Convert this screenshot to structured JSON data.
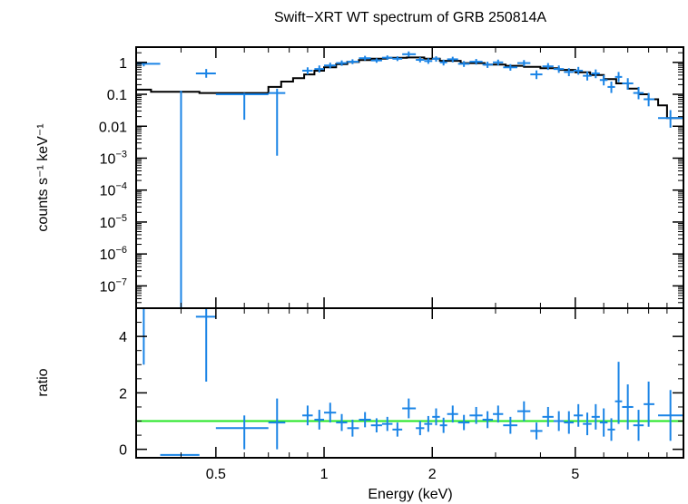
{
  "chart_data": {
    "type": "scatter",
    "title": "Swift−XRT WT spectrum of GRB 250814A",
    "xlabel": "Energy (keV)",
    "x_scale": "log",
    "xlim": [
      0.3,
      10
    ],
    "x_ticks": [
      {
        "value": 0.5,
        "label": "0.5"
      },
      {
        "value": 1,
        "label": "1"
      },
      {
        "value": 2,
        "label": "2"
      },
      {
        "value": 5,
        "label": "5"
      }
    ],
    "panels": [
      {
        "name": "spectrum",
        "ylabel": "counts s⁻¹ keV⁻¹",
        "y_scale": "log",
        "ylim": [
          2e-08,
          3
        ],
        "y_ticks": [
          {
            "value": 1,
            "label": "1"
          },
          {
            "value": 0.1,
            "label": "0.1"
          },
          {
            "value": 0.01,
            "label": "0.01"
          },
          {
            "value": 0.001,
            "base": "10",
            "exp": "−3"
          },
          {
            "value": 0.0001,
            "base": "10",
            "exp": "−4"
          },
          {
            "value": 1e-05,
            "base": "10",
            "exp": "−5"
          },
          {
            "value": 1e-06,
            "base": "10",
            "exp": "−6"
          },
          {
            "value": 1e-07,
            "base": "10",
            "exp": "−7"
          }
        ],
        "model": {
          "color": "#000000",
          "edges": [
            0.3,
            0.33,
            0.45,
            0.6,
            0.7,
            0.76,
            0.82,
            0.88,
            0.94,
            1.0,
            1.08,
            1.16,
            1.25,
            1.35,
            1.5,
            1.7,
            1.9,
            2.1,
            2.4,
            2.8,
            3.2,
            3.6,
            4.0,
            4.5,
            5.0,
            5.5,
            6.0,
            6.5,
            7.0,
            7.5,
            8.0,
            8.5,
            9.0,
            10.0
          ],
          "values": [
            0.14,
            0.12,
            0.11,
            0.11,
            0.17,
            0.25,
            0.32,
            0.42,
            0.55,
            0.7,
            0.88,
            1.03,
            1.18,
            1.3,
            1.4,
            1.42,
            1.3,
            1.12,
            0.95,
            0.85,
            0.78,
            0.72,
            0.66,
            0.58,
            0.49,
            0.4,
            0.3,
            0.22,
            0.15,
            0.1,
            0.07,
            0.045,
            0.018
          ]
        },
        "points": {
          "color": "#1a84e6",
          "data": [
            {
              "x": 0.315,
              "xlo": 0.3,
              "xhi": 0.35,
              "y": 0.9,
              "ylo": 0.75,
              "yhi": 1.05
            },
            {
              "x": 0.4,
              "xlo": 0.35,
              "xhi": 0.45,
              "y": 1e-08,
              "ylo": 1e-08,
              "yhi": 0.13
            },
            {
              "x": 0.47,
              "xlo": 0.44,
              "xhi": 0.5,
              "y": 0.45,
              "ylo": 0.33,
              "yhi": 0.62
            },
            {
              "x": 0.6,
              "xlo": 0.5,
              "xhi": 0.7,
              "y": 0.1,
              "ylo": 0.016,
              "yhi": 0.11
            },
            {
              "x": 0.74,
              "xlo": 0.7,
              "xhi": 0.78,
              "y": 0.11,
              "ylo": 0.0012,
              "yhi": 0.15
            },
            {
              "x": 0.9,
              "xlo": 0.87,
              "xhi": 0.93,
              "y": 0.55,
              "ylo": 0.42,
              "yhi": 0.7
            },
            {
              "x": 0.97,
              "xlo": 0.94,
              "xhi": 1.0,
              "y": 0.62,
              "ylo": 0.48,
              "yhi": 0.8
            },
            {
              "x": 1.04,
              "xlo": 1.0,
              "xhi": 1.08,
              "y": 0.8,
              "ylo": 0.65,
              "yhi": 0.98
            },
            {
              "x": 1.12,
              "xlo": 1.08,
              "xhi": 1.16,
              "y": 0.95,
              "ylo": 0.78,
              "yhi": 1.15
            },
            {
              "x": 1.2,
              "xlo": 1.16,
              "xhi": 1.25,
              "y": 1.05,
              "ylo": 0.88,
              "yhi": 1.25
            },
            {
              "x": 1.3,
              "xlo": 1.25,
              "xhi": 1.35,
              "y": 1.35,
              "ylo": 1.15,
              "yhi": 1.6
            },
            {
              "x": 1.4,
              "xlo": 1.35,
              "xhi": 1.45,
              "y": 1.15,
              "ylo": 0.97,
              "yhi": 1.35
            },
            {
              "x": 1.5,
              "xlo": 1.45,
              "xhi": 1.55,
              "y": 1.4,
              "ylo": 1.2,
              "yhi": 1.65
            },
            {
              "x": 1.6,
              "xlo": 1.55,
              "xhi": 1.65,
              "y": 1.3,
              "ylo": 1.1,
              "yhi": 1.55
            },
            {
              "x": 1.72,
              "xlo": 1.65,
              "xhi": 1.8,
              "y": 1.8,
              "ylo": 1.5,
              "yhi": 2.2
            },
            {
              "x": 1.85,
              "xlo": 1.8,
              "xhi": 1.9,
              "y": 1.2,
              "ylo": 1.0,
              "yhi": 1.45
            },
            {
              "x": 1.95,
              "xlo": 1.9,
              "xhi": 2.0,
              "y": 1.1,
              "ylo": 0.9,
              "yhi": 1.35
            },
            {
              "x": 2.05,
              "xlo": 2.0,
              "xhi": 2.1,
              "y": 1.3,
              "ylo": 1.05,
              "yhi": 1.55
            },
            {
              "x": 2.15,
              "xlo": 2.1,
              "xhi": 2.2,
              "y": 1.0,
              "ylo": 0.8,
              "yhi": 1.22
            },
            {
              "x": 2.28,
              "xlo": 2.2,
              "xhi": 2.36,
              "y": 1.25,
              "ylo": 1.0,
              "yhi": 1.5
            },
            {
              "x": 2.45,
              "xlo": 2.36,
              "xhi": 2.54,
              "y": 0.9,
              "ylo": 0.72,
              "yhi": 1.1
            },
            {
              "x": 2.65,
              "xlo": 2.54,
              "xhi": 2.76,
              "y": 1.05,
              "ylo": 0.85,
              "yhi": 1.28
            },
            {
              "x": 2.85,
              "xlo": 2.76,
              "xhi": 2.95,
              "y": 0.85,
              "ylo": 0.67,
              "yhi": 1.05
            },
            {
              "x": 3.05,
              "xlo": 2.95,
              "xhi": 3.15,
              "y": 1.0,
              "ylo": 0.8,
              "yhi": 1.22
            },
            {
              "x": 3.3,
              "xlo": 3.15,
              "xhi": 3.45,
              "y": 0.7,
              "ylo": 0.55,
              "yhi": 0.88
            },
            {
              "x": 3.6,
              "xlo": 3.45,
              "xhi": 3.75,
              "y": 0.95,
              "ylo": 0.75,
              "yhi": 1.18
            },
            {
              "x": 3.9,
              "xlo": 3.75,
              "xhi": 4.05,
              "y": 0.42,
              "ylo": 0.3,
              "yhi": 0.56
            },
            {
              "x": 4.2,
              "xlo": 4.05,
              "xhi": 4.35,
              "y": 0.75,
              "ylo": 0.58,
              "yhi": 0.95
            },
            {
              "x": 4.5,
              "xlo": 4.35,
              "xhi": 4.65,
              "y": 0.62,
              "ylo": 0.47,
              "yhi": 0.8
            },
            {
              "x": 4.8,
              "xlo": 4.65,
              "xhi": 4.95,
              "y": 0.5,
              "ylo": 0.37,
              "yhi": 0.66
            },
            {
              "x": 5.1,
              "xlo": 4.95,
              "xhi": 5.25,
              "y": 0.55,
              "ylo": 0.41,
              "yhi": 0.72
            },
            {
              "x": 5.4,
              "xlo": 5.25,
              "xhi": 5.55,
              "y": 0.38,
              "ylo": 0.27,
              "yhi": 0.52
            },
            {
              "x": 5.7,
              "xlo": 5.55,
              "xhi": 5.85,
              "y": 0.45,
              "ylo": 0.32,
              "yhi": 0.6
            },
            {
              "x": 6.0,
              "xlo": 5.85,
              "xhi": 6.15,
              "y": 0.28,
              "ylo": 0.19,
              "yhi": 0.4
            },
            {
              "x": 6.3,
              "xlo": 6.15,
              "xhi": 6.45,
              "y": 0.17,
              "ylo": 0.11,
              "yhi": 0.25
            },
            {
              "x": 6.6,
              "xlo": 6.45,
              "xhi": 6.75,
              "y": 0.35,
              "ylo": 0.24,
              "yhi": 0.5
            },
            {
              "x": 7.0,
              "xlo": 6.75,
              "xhi": 7.25,
              "y": 0.22,
              "ylo": 0.14,
              "yhi": 0.32
            },
            {
              "x": 7.5,
              "xlo": 7.25,
              "xhi": 7.75,
              "y": 0.11,
              "ylo": 0.07,
              "yhi": 0.17
            },
            {
              "x": 8.0,
              "xlo": 7.75,
              "xhi": 8.3,
              "y": 0.07,
              "ylo": 0.042,
              "yhi": 0.11
            },
            {
              "x": 9.2,
              "xlo": 8.5,
              "xhi": 10.0,
              "y": 0.018,
              "ylo": 0.009,
              "yhi": 0.032
            }
          ]
        }
      },
      {
        "name": "ratio",
        "ylabel": "ratio",
        "y_scale": "linear",
        "ylim": [
          -0.3,
          5
        ],
        "y_ticks": [
          {
            "value": 0,
            "label": "0"
          },
          {
            "value": 2,
            "label": "2"
          },
          {
            "value": 4,
            "label": "4"
          }
        ],
        "reference_line": {
          "y": 1,
          "color": "#22e622"
        },
        "points": {
          "color": "#1a84e6",
          "data": [
            {
              "x": 0.315,
              "xlo": 0.3,
              "xhi": 0.35,
              "y": 5.0,
              "ylo": 3.0,
              "yhi": 5.0
            },
            {
              "x": 0.4,
              "xlo": 0.35,
              "xhi": 0.45,
              "y": -0.2,
              "ylo": -0.2,
              "yhi": -0.2
            },
            {
              "x": 0.47,
              "xlo": 0.44,
              "xhi": 0.5,
              "y": 4.7,
              "ylo": 2.4,
              "yhi": 5.0
            },
            {
              "x": 0.6,
              "xlo": 0.5,
              "xhi": 0.7,
              "y": 0.75,
              "ylo": 0.0,
              "yhi": 1.2
            },
            {
              "x": 0.74,
              "xlo": 0.7,
              "xhi": 0.78,
              "y": 0.95,
              "ylo": 0.0,
              "yhi": 1.8
            },
            {
              "x": 0.9,
              "xlo": 0.87,
              "xhi": 0.93,
              "y": 1.2,
              "ylo": 0.85,
              "yhi": 1.55
            },
            {
              "x": 0.97,
              "xlo": 0.94,
              "xhi": 1.0,
              "y": 1.05,
              "ylo": 0.7,
              "yhi": 1.4
            },
            {
              "x": 1.04,
              "xlo": 1.0,
              "xhi": 1.08,
              "y": 1.3,
              "ylo": 0.95,
              "yhi": 1.65
            },
            {
              "x": 1.12,
              "xlo": 1.08,
              "xhi": 1.16,
              "y": 0.95,
              "ylo": 0.65,
              "yhi": 1.25
            },
            {
              "x": 1.2,
              "xlo": 1.16,
              "xhi": 1.25,
              "y": 0.75,
              "ylo": 0.45,
              "yhi": 1.05
            },
            {
              "x": 1.3,
              "xlo": 1.25,
              "xhi": 1.35,
              "y": 1.05,
              "ylo": 0.78,
              "yhi": 1.32
            },
            {
              "x": 1.4,
              "xlo": 1.35,
              "xhi": 1.45,
              "y": 0.85,
              "ylo": 0.6,
              "yhi": 1.1
            },
            {
              "x": 1.5,
              "xlo": 1.45,
              "xhi": 1.55,
              "y": 0.9,
              "ylo": 0.65,
              "yhi": 1.15
            },
            {
              "x": 1.6,
              "xlo": 1.55,
              "xhi": 1.65,
              "y": 0.7,
              "ylo": 0.45,
              "yhi": 0.95
            },
            {
              "x": 1.72,
              "xlo": 1.65,
              "xhi": 1.8,
              "y": 1.45,
              "ylo": 1.1,
              "yhi": 1.8
            },
            {
              "x": 1.85,
              "xlo": 1.8,
              "xhi": 1.9,
              "y": 0.75,
              "ylo": 0.5,
              "yhi": 1.0
            },
            {
              "x": 1.95,
              "xlo": 1.9,
              "xhi": 2.0,
              "y": 0.9,
              "ylo": 0.62,
              "yhi": 1.18
            },
            {
              "x": 2.05,
              "xlo": 2.0,
              "xhi": 2.1,
              "y": 1.15,
              "ylo": 0.85,
              "yhi": 1.45
            },
            {
              "x": 2.15,
              "xlo": 2.1,
              "xhi": 2.2,
              "y": 0.85,
              "ylo": 0.58,
              "yhi": 1.12
            },
            {
              "x": 2.28,
              "xlo": 2.2,
              "xhi": 2.36,
              "y": 1.25,
              "ylo": 0.95,
              "yhi": 1.55
            },
            {
              "x": 2.45,
              "xlo": 2.36,
              "xhi": 2.54,
              "y": 0.95,
              "ylo": 0.68,
              "yhi": 1.22
            },
            {
              "x": 2.65,
              "xlo": 2.54,
              "xhi": 2.76,
              "y": 1.2,
              "ylo": 0.9,
              "yhi": 1.5
            },
            {
              "x": 2.85,
              "xlo": 2.76,
              "xhi": 2.95,
              "y": 1.05,
              "ylo": 0.75,
              "yhi": 1.35
            },
            {
              "x": 3.05,
              "xlo": 2.95,
              "xhi": 3.15,
              "y": 1.25,
              "ylo": 0.95,
              "yhi": 1.55
            },
            {
              "x": 3.3,
              "xlo": 3.15,
              "xhi": 3.45,
              "y": 0.85,
              "ylo": 0.55,
              "yhi": 1.15
            },
            {
              "x": 3.6,
              "xlo": 3.45,
              "xhi": 3.75,
              "y": 1.35,
              "ylo": 1.0,
              "yhi": 1.7
            },
            {
              "x": 3.9,
              "xlo": 3.75,
              "xhi": 4.05,
              "y": 0.65,
              "ylo": 0.35,
              "yhi": 0.95
            },
            {
              "x": 4.2,
              "xlo": 4.05,
              "xhi": 4.35,
              "y": 1.15,
              "ylo": 0.8,
              "yhi": 1.5
            },
            {
              "x": 4.5,
              "xlo": 4.35,
              "xhi": 4.65,
              "y": 1.0,
              "ylo": 0.65,
              "yhi": 1.35
            },
            {
              "x": 4.8,
              "xlo": 4.65,
              "xhi": 4.95,
              "y": 0.95,
              "ylo": 0.55,
              "yhi": 1.35
            },
            {
              "x": 5.1,
              "xlo": 4.95,
              "xhi": 5.25,
              "y": 1.2,
              "ylo": 0.8,
              "yhi": 1.6
            },
            {
              "x": 5.4,
              "xlo": 5.25,
              "xhi": 5.55,
              "y": 0.9,
              "ylo": 0.5,
              "yhi": 1.3
            },
            {
              "x": 5.7,
              "xlo": 5.55,
              "xhi": 5.85,
              "y": 1.15,
              "ylo": 0.7,
              "yhi": 1.6
            },
            {
              "x": 6.0,
              "xlo": 5.85,
              "xhi": 6.15,
              "y": 0.95,
              "ylo": 0.45,
              "yhi": 1.45
            },
            {
              "x": 6.3,
              "xlo": 6.15,
              "xhi": 6.45,
              "y": 0.7,
              "ylo": 0.3,
              "yhi": 1.1
            },
            {
              "x": 6.6,
              "xlo": 6.45,
              "xhi": 6.75,
              "y": 1.7,
              "ylo": 0.9,
              "yhi": 3.1
            },
            {
              "x": 7.0,
              "xlo": 6.75,
              "xhi": 7.25,
              "y": 1.5,
              "ylo": 0.7,
              "yhi": 2.3
            },
            {
              "x": 7.5,
              "xlo": 7.25,
              "xhi": 7.75,
              "y": 0.85,
              "ylo": 0.3,
              "yhi": 1.4
            },
            {
              "x": 8.0,
              "xlo": 7.75,
              "xhi": 8.3,
              "y": 1.6,
              "ylo": 0.8,
              "yhi": 2.4
            },
            {
              "x": 9.2,
              "xlo": 8.5,
              "xhi": 10.0,
              "y": 1.2,
              "ylo": 0.3,
              "yhi": 2.1
            }
          ]
        }
      }
    ]
  }
}
